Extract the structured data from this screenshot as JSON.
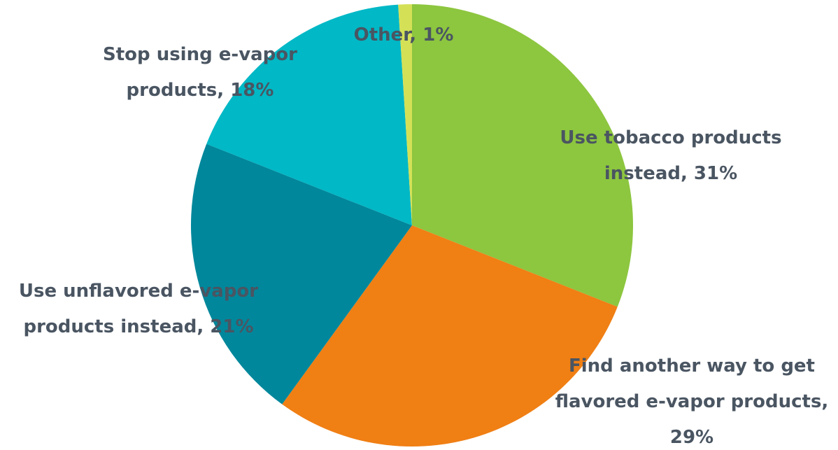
{
  "chart_data": {
    "type": "pie",
    "categories": [
      "Use tobacco products instead",
      "Find another way to get flavored e-vapor products",
      "Use unflavored e-vapor products instead",
      "Stop using e-vapor products",
      "Other"
    ],
    "values": [
      31,
      29,
      21,
      18,
      1
    ],
    "colors": [
      "#8dc63f",
      "#f07f14",
      "#00879b",
      "#00b8c6",
      "#d4e157"
    ],
    "label_lines": [
      [
        "Use tobacco products",
        "instead, 31%"
      ],
      [
        "Find another way to get",
        "flavored e-vapor products,",
        "29%"
      ],
      [
        "Use unflavored e-vapor",
        "products instead, 21%"
      ],
      [
        "Stop using e-vapor",
        "products, 18%"
      ],
      [
        "Other, 1%"
      ]
    ],
    "start_angle_deg": 0,
    "direction": "clockwise",
    "label_color": "#4a5562"
  }
}
